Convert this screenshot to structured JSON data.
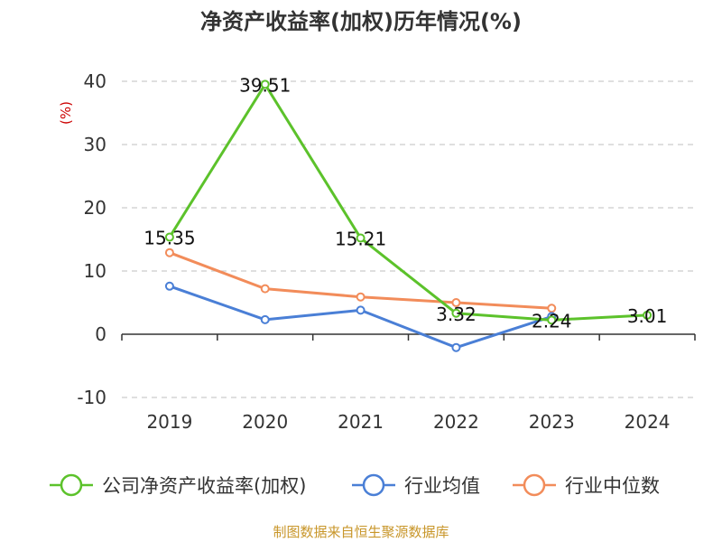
{
  "chart_data": {
    "type": "line",
    "title": "净资产收益率(加权)历年情况(%)",
    "ylabel": "(%)",
    "categories": [
      "2019",
      "2020",
      "2021",
      "2022",
      "2023",
      "2024"
    ],
    "ylim": [
      -10,
      40
    ],
    "yticks": [
      40,
      30,
      20,
      10,
      0,
      -10
    ],
    "series": [
      {
        "name": "公司净资产收益率(加权)",
        "color": "#5cc22b",
        "values": [
          15.35,
          39.51,
          15.21,
          3.32,
          2.24,
          3.01
        ],
        "labels": [
          "15.35",
          "39.51",
          "15.21",
          "3.32",
          "2.24",
          "3.01"
        ]
      },
      {
        "name": "行业均值",
        "color": "#4a7fd6",
        "values": [
          7.6,
          2.3,
          3.8,
          -2.1,
          2.8,
          null
        ]
      },
      {
        "name": "行业中位数",
        "color": "#f28c5a",
        "values": [
          12.9,
          7.2,
          5.9,
          5.0,
          4.1,
          null
        ]
      }
    ],
    "grid": true,
    "legend": "bottom"
  },
  "source": "制图数据来自恒生聚源数据库"
}
